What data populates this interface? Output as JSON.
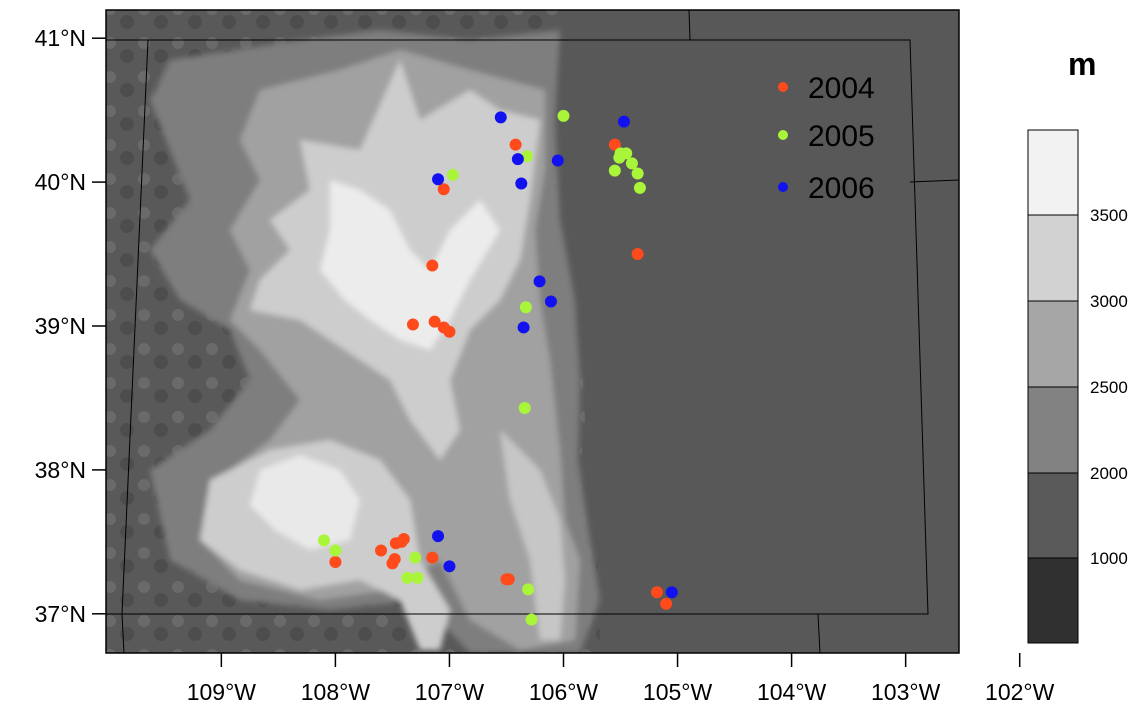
{
  "map": {
    "lat_range": [
      36.75,
      41.2
    ],
    "lon_range": [
      -109.25,
      -101.8
    ],
    "lat_ticks": [
      {
        "value": 41,
        "label": "41°N"
      },
      {
        "value": 40,
        "label": "40°N"
      },
      {
        "value": 39,
        "label": "39°N"
      },
      {
        "value": 38,
        "label": "38°N"
      },
      {
        "value": 37,
        "label": "37°N"
      }
    ],
    "lon_ticks": [
      {
        "value": -109,
        "label": "109°W"
      },
      {
        "value": -108,
        "label": "108°W"
      },
      {
        "value": -107,
        "label": "107°W"
      },
      {
        "value": -106,
        "label": "106°W"
      },
      {
        "value": -105,
        "label": "105°W"
      },
      {
        "value": -104,
        "label": "104°W"
      },
      {
        "value": -103,
        "label": "103°W"
      },
      {
        "value": -102,
        "label": "102°W"
      }
    ]
  },
  "colorbar": {
    "title": "m",
    "labels": [
      "3500",
      "3000",
      "2500",
      "2000",
      "1000"
    ],
    "colors": [
      "#f2f2f2",
      "#d2d2d2",
      "#a6a6a6",
      "#828282",
      "#5a5a5a",
      "#303030"
    ]
  },
  "legend": [
    {
      "label": "2004",
      "color": "#ff4a1c"
    },
    {
      "label": "2005",
      "color": "#a8f53a"
    },
    {
      "label": "2006",
      "color": "#1212f0"
    }
  ],
  "stations": {
    "2004": [
      [
        -106.42,
        40.26
      ],
      [
        -107.05,
        39.95
      ],
      [
        -105.55,
        40.26
      ],
      [
        -107.15,
        39.42
      ],
      [
        -105.35,
        39.5
      ],
      [
        -107.32,
        39.01
      ],
      [
        -107.13,
        39.03
      ],
      [
        -107.05,
        38.99
      ],
      [
        -107.0,
        38.96
      ],
      [
        -108.0,
        37.36
      ],
      [
        -107.5,
        37.35
      ],
      [
        -107.47,
        37.49
      ],
      [
        -107.4,
        37.52
      ],
      [
        -107.42,
        37.5
      ],
      [
        -107.6,
        37.44
      ],
      [
        -107.48,
        37.38
      ],
      [
        -107.15,
        37.39
      ],
      [
        -106.5,
        37.24
      ],
      [
        -106.48,
        37.24
      ],
      [
        -105.18,
        37.15
      ],
      [
        -105.1,
        37.07
      ]
    ],
    "2005": [
      [
        -106.0,
        40.46
      ],
      [
        -106.97,
        40.05
      ],
      [
        -106.32,
        40.18
      ],
      [
        -105.5,
        40.2
      ],
      [
        -105.45,
        40.2
      ],
      [
        -105.4,
        40.13
      ],
      [
        -105.35,
        40.06
      ],
      [
        -105.33,
        39.96
      ],
      [
        -105.55,
        40.08
      ],
      [
        -105.51,
        40.17
      ],
      [
        -106.33,
        39.13
      ],
      [
        -106.34,
        38.43
      ],
      [
        -108.1,
        37.51
      ],
      [
        -108.0,
        37.44
      ],
      [
        -107.3,
        37.39
      ],
      [
        -107.37,
        37.25
      ],
      [
        -107.28,
        37.25
      ],
      [
        -106.31,
        37.17
      ],
      [
        -106.28,
        36.96
      ]
    ],
    "2006": [
      [
        -106.55,
        40.45
      ],
      [
        -105.47,
        40.42
      ],
      [
        -106.4,
        40.16
      ],
      [
        -106.05,
        40.15
      ],
      [
        -107.1,
        40.02
      ],
      [
        -106.37,
        39.99
      ],
      [
        -106.21,
        39.31
      ],
      [
        -106.11,
        39.17
      ],
      [
        -106.35,
        38.99
      ],
      [
        -107.1,
        37.54
      ],
      [
        -107.0,
        37.33
      ],
      [
        -105.05,
        37.15
      ]
    ]
  }
}
